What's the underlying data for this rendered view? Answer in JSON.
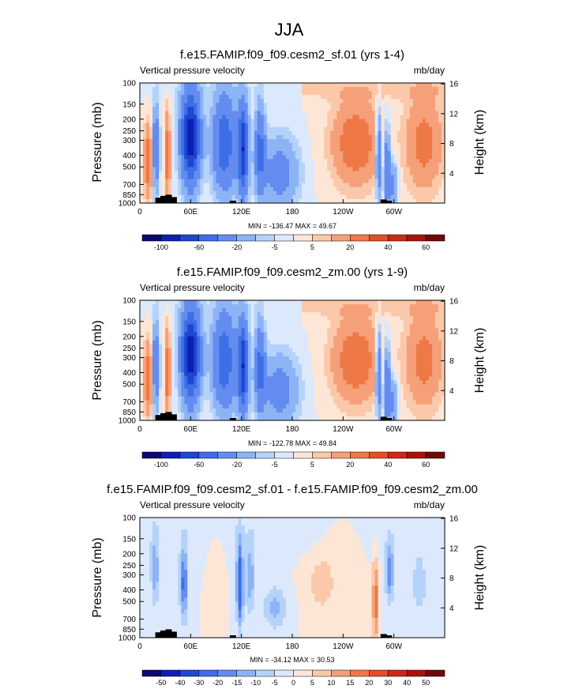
{
  "figure": {
    "title": "JJA"
  },
  "palette_colors": [
    "#0a0a6e",
    "#0d1eb4",
    "#1e46d2",
    "#3c6ee6",
    "#648cf0",
    "#8cb4f5",
    "#b4d2fa",
    "#dce8fc",
    "#fde6d6",
    "#fbc8aa",
    "#f5a078",
    "#ee7846",
    "#e64e24",
    "#cd2814",
    "#a8140a",
    "#6e0a06"
  ],
  "chart_data": [
    {
      "type": "heatmap",
      "title": "f.e15.FAMIP.f09_f09.cesm2_sf.01 (yrs 1-4)",
      "left_label": "Vertical pressure velocity",
      "right_label": "mb/day",
      "ylabel": "Pressure (mb)",
      "y2label": "Height (km)",
      "y_ticks": [
        "100",
        "150",
        "200",
        "250",
        "300",
        "400",
        "500",
        "700",
        "850",
        "1000"
      ],
      "y2_ticks": [
        "16",
        "12",
        "8",
        "4"
      ],
      "x_ticks": [
        "0",
        "60E",
        "120E",
        "180",
        "120W",
        "60W"
      ],
      "stats": "MIN = -136.47  MAX = 49.67",
      "colorbar_labels": [
        "-100",
        "-60",
        "-20",
        "-5",
        "5",
        "20",
        "40",
        "60"
      ],
      "min": -136.47,
      "max": 49.67,
      "lon_range": [
        0,
        360
      ],
      "pressure_range": [
        1000,
        100
      ]
    },
    {
      "type": "heatmap",
      "title": "f.e15.FAMIP.f09_f09.cesm2_zm.00 (yrs 1-9)",
      "left_label": "Vertical pressure velocity",
      "right_label": "mb/day",
      "ylabel": "Pressure (mb)",
      "y2label": "Height (km)",
      "y_ticks": [
        "100",
        "150",
        "200",
        "250",
        "300",
        "400",
        "500",
        "700",
        "850",
        "1000"
      ],
      "y2_ticks": [
        "16",
        "12",
        "8",
        "4"
      ],
      "x_ticks": [
        "0",
        "60E",
        "120E",
        "180",
        "120W",
        "60W"
      ],
      "stats": "MIN = -122.78  MAX = 49.84",
      "colorbar_labels": [
        "-100",
        "-60",
        "-20",
        "-5",
        "5",
        "20",
        "40",
        "60"
      ],
      "min": -122.78,
      "max": 49.84,
      "lon_range": [
        0,
        360
      ],
      "pressure_range": [
        1000,
        100
      ]
    },
    {
      "type": "heatmap",
      "title": "f.e15.FAMIP.f09_f09.cesm2_sf.01 - f.e15.FAMIP.f09_f09.cesm2_zm.00",
      "left_label": "Vertical pressure velocity",
      "right_label": "mb/day",
      "ylabel": "Pressure (mb)",
      "y2label": "Height (km)",
      "y_ticks": [
        "100",
        "150",
        "200",
        "250",
        "300",
        "400",
        "500",
        "700",
        "850",
        "1000"
      ],
      "y2_ticks": [
        "16",
        "12",
        "8",
        "4"
      ],
      "x_ticks": [
        "0",
        "60E",
        "120E",
        "180",
        "120W",
        "60W"
      ],
      "stats": "MIN = -34.12  MAX = 30.53",
      "colorbar_labels": [
        "-50",
        "-40",
        "-30",
        "-20",
        "-15",
        "-10",
        "-5",
        "0",
        "5",
        "10",
        "15",
        "20",
        "30",
        "40",
        "50"
      ],
      "min": -34.12,
      "max": 30.53,
      "lon_range": [
        0,
        360
      ],
      "pressure_range": [
        1000,
        100
      ]
    }
  ]
}
